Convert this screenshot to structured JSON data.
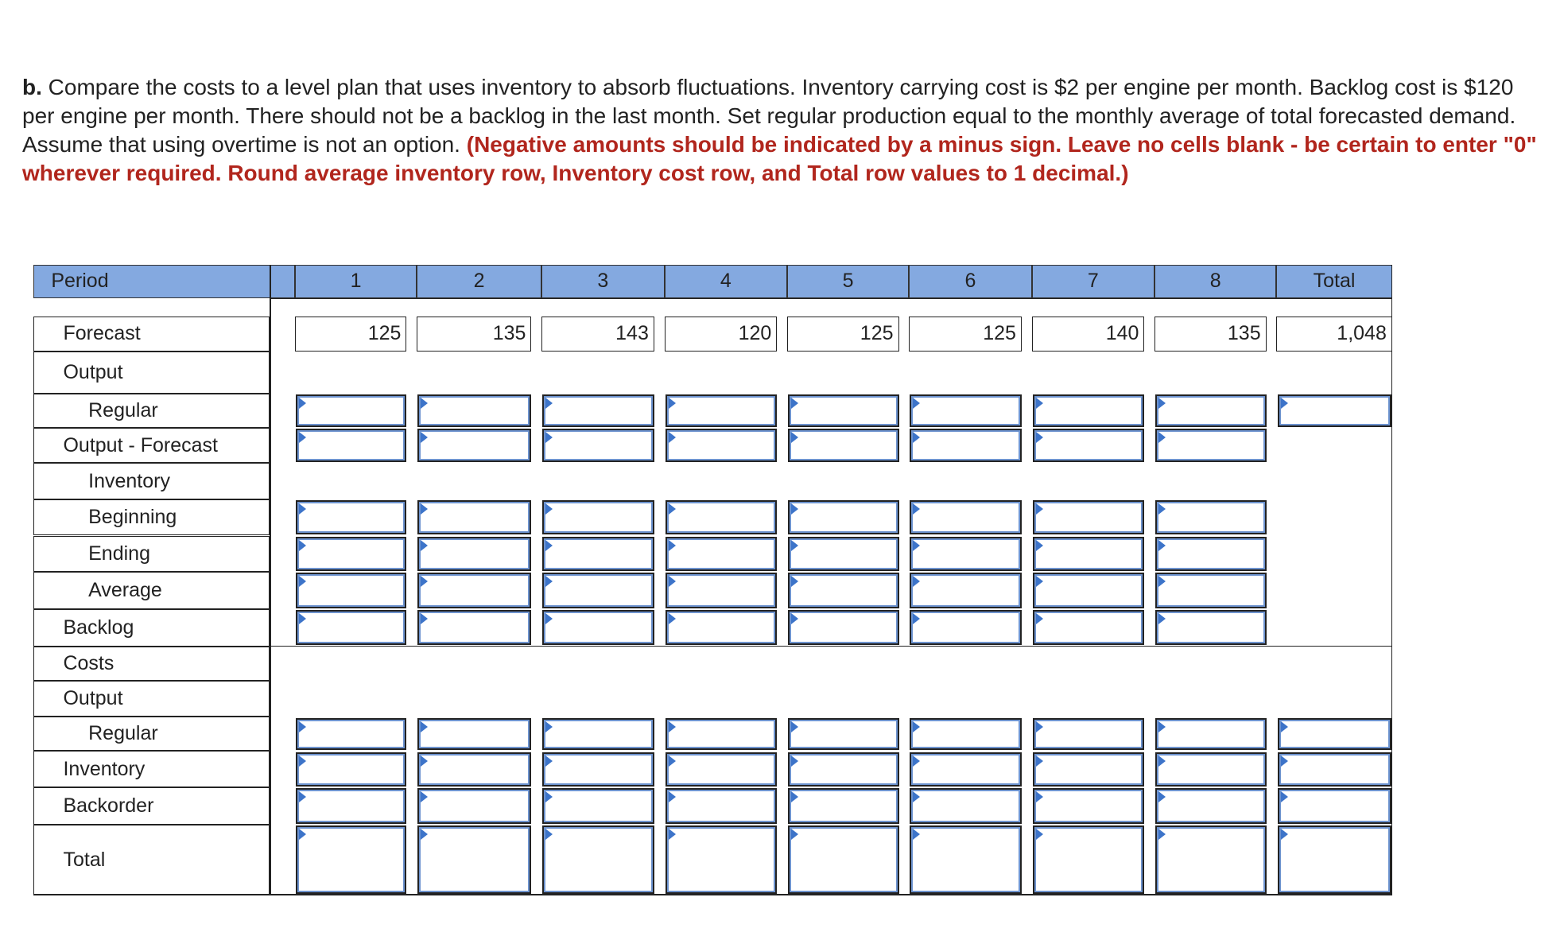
{
  "instructions": {
    "label": "b.",
    "text": "Compare the costs to a level plan that uses inventory to absorb fluctuations. Inventory carrying cost is $2 per engine per month. Backlog cost is $120 per engine per month. There should not be a backlog in the last month. Set regular production equal to the monthly average of total forecasted demand. Assume that using overtime is not an option.",
    "note": "(Negative amounts should be indicated by a minus sign. Leave no cells blank - be certain to enter \"0\" wherever required. Round average inventory row, Inventory cost row, and Total row values to 1 decimal.)"
  },
  "table": {
    "header": [
      "Period",
      "1",
      "2",
      "3",
      "4",
      "5",
      "6",
      "7",
      "8",
      "Total"
    ],
    "row_labels": [
      "Forecast",
      "Output",
      "Regular",
      "Output - Forecast",
      "Inventory",
      "Beginning",
      "Ending",
      "Average",
      "Backlog",
      "Costs",
      "Output",
      "Regular",
      "Inventory",
      "Backorder",
      "Total"
    ],
    "forecast": [
      "125",
      "135",
      "143",
      "120",
      "125",
      "125",
      "140",
      "135",
      "1,048"
    ]
  }
}
